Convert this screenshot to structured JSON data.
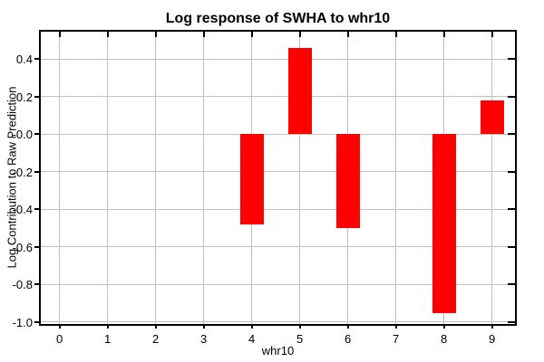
{
  "chart_data": {
    "type": "bar",
    "title": "Log response of SWHA to whr10",
    "xlabel": "whr10",
    "ylabel": "Log Contribution to Raw Prediction",
    "x": [
      0,
      1,
      2,
      3,
      4,
      5,
      6,
      7,
      8,
      9
    ],
    "values": [
      0,
      0,
      0,
      0,
      -0.48,
      0.46,
      -0.5,
      0,
      -0.95,
      0.18
    ],
    "bar_width": 0.49,
    "bar_color": "#ff0000",
    "axis_color": "#000000",
    "grid": true,
    "grid_color": "#c0c0c0",
    "background": "#ffffff",
    "xlim": [
      -0.39,
      9.48
    ],
    "ylim": [
      -1.01,
      0.545
    ],
    "xticks": [
      0,
      1,
      2,
      3,
      4,
      5,
      6,
      7,
      8,
      9
    ],
    "xtick_labels": [
      "0",
      "1",
      "2",
      "3",
      "4",
      "5",
      "6",
      "7",
      "8",
      "9"
    ],
    "yticks": [
      0.4,
      0.2,
      0,
      -0.2,
      -0.4,
      -0.6,
      -0.8,
      -1.0
    ],
    "ytick_labels": [
      "0.4",
      "0.2",
      "-0.0",
      "-0.2",
      "-0.4",
      "-0.6",
      "-0.8",
      "-1.0"
    ],
    "legend": null
  }
}
